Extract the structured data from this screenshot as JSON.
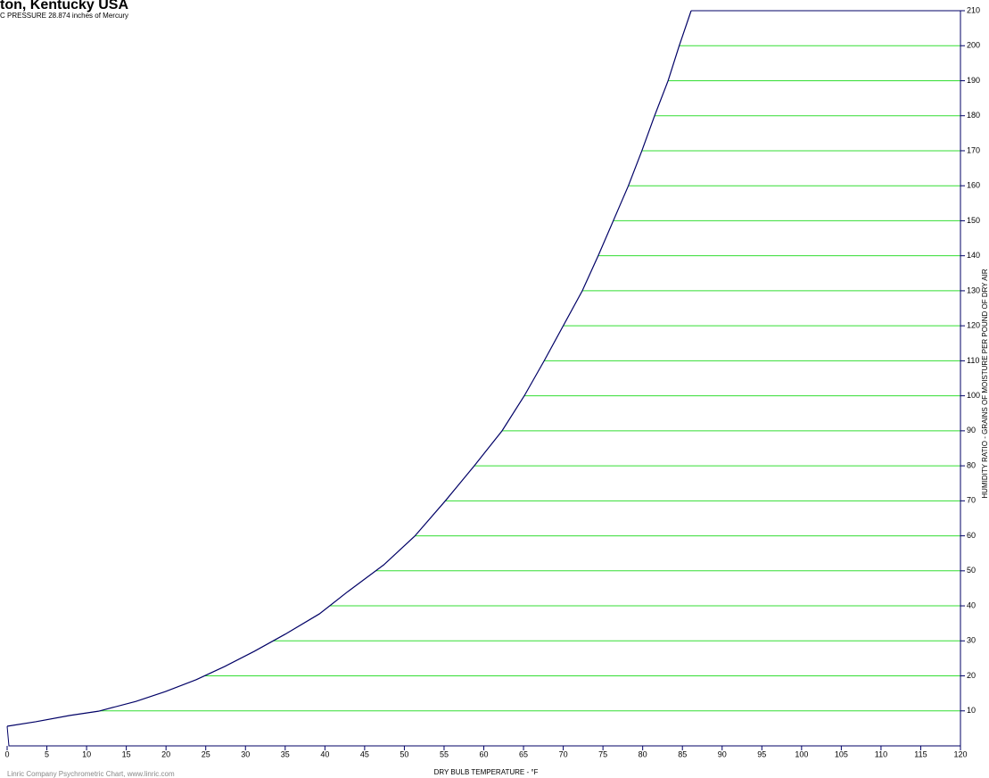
{
  "chart_data": {
    "type": "line",
    "title": "ton, Kentucky USA",
    "subtitle": "C PRESSURE 28.874 inches of Mercury",
    "x_label": "DRY BULB TEMPERATURE - °F",
    "y_label": "HUMIDITY RATIO - GRAINS OF MOISTURE PER POUND OF DRY AIR",
    "footer": "Linric Company Psychrometric Chart, www.linric.com",
    "xlim": [
      0,
      120
    ],
    "xticks": [
      0,
      5,
      10,
      15,
      20,
      25,
      30,
      35,
      40,
      45,
      50,
      55,
      60,
      65,
      70,
      75,
      80,
      85,
      90,
      95,
      100,
      105,
      110,
      115,
      120
    ],
    "ylim": [
      0,
      210
    ],
    "yticks": [
      10,
      20,
      30,
      40,
      50,
      60,
      70,
      80,
      90,
      100,
      110,
      120,
      130,
      140,
      150,
      160,
      170,
      180,
      190,
      200,
      210
    ],
    "grid_color": "#33dd33",
    "series": [
      {
        "color": "#000066",
        "x": [
          0,
          3.6,
          7.9,
          11.5,
          16.2,
          19.9,
          23.8,
          27.4,
          31.1,
          35,
          39.3,
          42.9,
          47.4,
          51.3,
          55.2,
          58.8,
          62.3,
          65.1,
          67.6,
          70,
          72.4,
          74.4,
          76.3,
          78.2,
          79.9,
          81.5,
          83.2,
          84.6,
          86.1
        ],
        "values": [
          5.6,
          6.9,
          8.7,
          9.9,
          12.7,
          15.5,
          18.9,
          22.7,
          27,
          31.9,
          37.7,
          44.1,
          51.7,
          59.9,
          70.1,
          80,
          90,
          100,
          110,
          120,
          130,
          140,
          150,
          160,
          170,
          180,
          190,
          200,
          210
        ]
      }
    ]
  }
}
